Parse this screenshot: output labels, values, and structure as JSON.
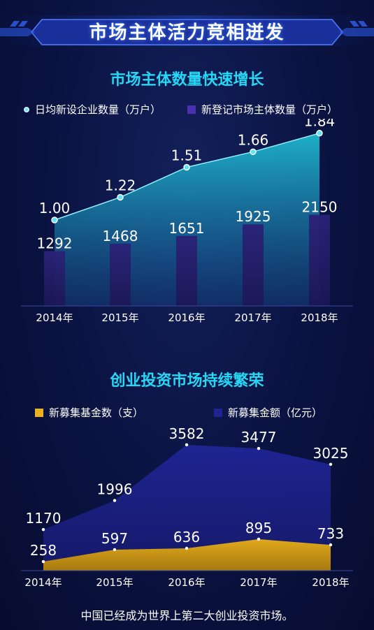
{
  "page_title": "市场主体活力竞相迸发",
  "footer": "中国已经成为世界上第二大创业投资市场。",
  "colors": {
    "title_cyan": "#25d8f5",
    "line_area": "#1aa7c0",
    "bar_purple": "#2a1f6e",
    "fund_gold": "#d8a21a",
    "amount_navy": "#1b1f7a"
  },
  "chart_data": [
    {
      "type": "line+bar",
      "title": "市场主体数量快速增长",
      "categories": [
        "2014年",
        "2015年",
        "2016年",
        "2017年",
        "2018年"
      ],
      "series": [
        {
          "name": "日均新设企业数量（万户）",
          "type": "area",
          "values": [
            1.0,
            1.22,
            1.51,
            1.66,
            1.84
          ],
          "labels": [
            "1.00",
            "1.22",
            "1.51",
            "1.66",
            "1.84"
          ]
        },
        {
          "name": "新登记市场主体数量（万户）",
          "type": "bar",
          "values": [
            1292,
            1468,
            1651,
            1925,
            2150
          ],
          "labels": [
            "1292",
            "1468",
            "1651",
            "1925",
            "2150"
          ]
        }
      ]
    },
    {
      "type": "area",
      "title": "创业投资市场持续繁荣",
      "categories": [
        "2014年",
        "2015年",
        "2016年",
        "2017年",
        "2018年"
      ],
      "series": [
        {
          "name": "新募集基金数（支）",
          "values": [
            258,
            597,
            636,
            895,
            733
          ]
        },
        {
          "name": "新募集金额（亿元）",
          "values": [
            1170,
            1996,
            3582,
            3477,
            3025
          ]
        }
      ]
    }
  ]
}
